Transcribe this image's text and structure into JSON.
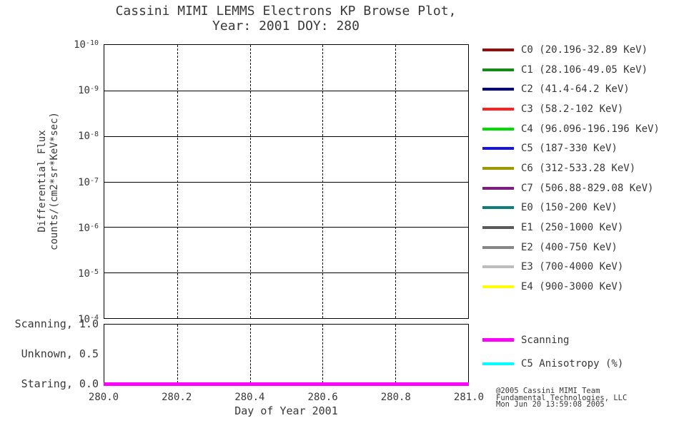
{
  "title": {
    "line1": "Cassini MIMI LEMMS Electrons KP Browse Plot,",
    "line2": "Year: 2001 DOY: 280"
  },
  "y_axis": {
    "label_line1": "Differential Flux",
    "label_line2": "counts/(cm2*sr*KeV*sec)"
  },
  "x_axis": {
    "label": "Day of Year 2001"
  },
  "chart_data": {
    "type": "line",
    "title": "Cassini MIMI LEMMS Electrons KP Browse Plot, Year: 2001 DOY: 280",
    "xlabel": "Day of Year 2001",
    "ylabel": "Differential Flux counts/(cm2*sr*KeV*sec)",
    "xlim": [
      280.0,
      281.0
    ],
    "x_ticks": [
      280.0,
      280.2,
      280.4,
      280.6,
      280.8,
      281.0
    ],
    "x_tick_labels": [
      "280.0",
      "280.2",
      "280.4",
      "280.6",
      "280.8",
      "281.0"
    ],
    "grid_horizontal": "solid",
    "grid_vertical": "dashed",
    "legend_position": "right",
    "main_panel": {
      "scale": "log",
      "y_tick_base": "10",
      "y_tick_exponents_top_to_bottom": [
        "-10",
        "-9",
        "-8",
        "-7",
        "-6",
        "-5",
        "-4"
      ],
      "series": []
    },
    "mode_panel": {
      "y_ticks": [
        {
          "mode": "Scanning,",
          "value": "1.0"
        },
        {
          "mode": "Unknown,",
          "value": "0.5"
        },
        {
          "mode": "Staring,",
          "value": "0.0"
        }
      ],
      "series": [
        {
          "name": "Scanning",
          "color": "#ff00ff",
          "x": [
            280.0,
            281.0
          ],
          "y": [
            0.0,
            0.0
          ],
          "thickness": 5
        }
      ]
    }
  },
  "legend": {
    "channels": [
      {
        "label": "C0 (20.196-32.89 KeV)",
        "color": "#8b1010"
      },
      {
        "label": "C1 (28.106-49.05 KeV)",
        "color": "#168a16"
      },
      {
        "label": "C2 (41.4-64.2 KeV)",
        "color": "#000080"
      },
      {
        "label": "C3 (58.2-102 KeV)",
        "color": "#ff2020"
      },
      {
        "label": "C4 (96.096-196.196 KeV)",
        "color": "#00dd00"
      },
      {
        "label": "C5 (187-330 KeV)",
        "color": "#1818cc"
      },
      {
        "label": "C6 (312-533.28 KeV)",
        "color": "#9a9a00"
      },
      {
        "label": "C7 (506.88-829.08 KeV)",
        "color": "#7d1d7d"
      },
      {
        "label": "E0 (150-200 KeV)",
        "color": "#0d7d7d"
      },
      {
        "label": "E1 (250-1000 KeV)",
        "color": "#5a5a5a"
      },
      {
        "label": "E2 (400-750 KeV)",
        "color": "#868686"
      },
      {
        "label": "E3 (700-4000 KeV)",
        "color": "#bdbdbd"
      },
      {
        "label": "E4 (900-3000 KeV)",
        "color": "#ffff00"
      }
    ],
    "modes": [
      {
        "label": "Scanning",
        "color": "#ff00ff",
        "thickness": 5
      },
      {
        "label": "C5 Anisotropy (%)",
        "color": "#00ffff",
        "thickness": 4
      }
    ]
  },
  "credit": {
    "line1": "@2005 Cassini MIMI Team",
    "line2": "Fundamental Technologies, LLC",
    "line3": "Mon Jun 20 13:59:08 2005"
  },
  "colors": {
    "background": "#ffffff",
    "axis": "#000000",
    "text": "#383838",
    "scanning_line": "#ff00ff"
  }
}
